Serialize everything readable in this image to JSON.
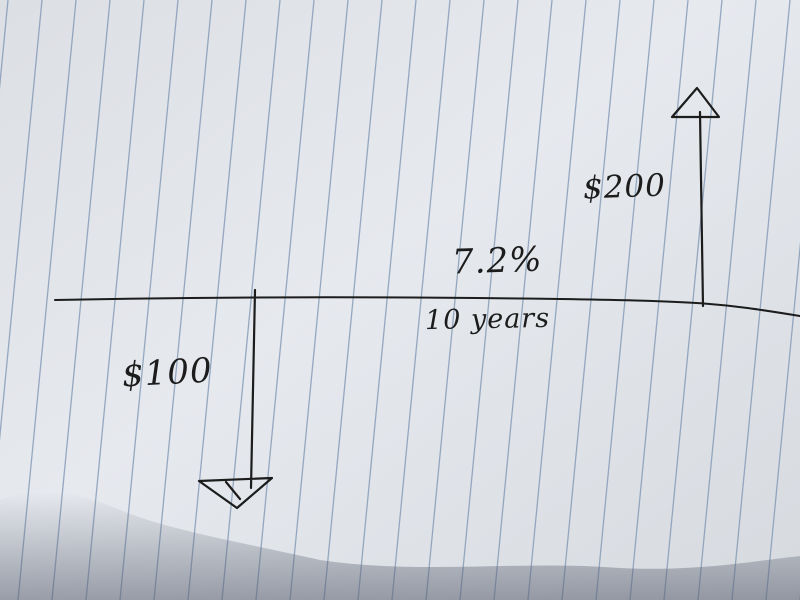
{
  "diagram": {
    "labels": {
      "rate": "7.2%",
      "period": "10 years",
      "outflow": "$100",
      "inflow": "$200"
    }
  },
  "colors": {
    "paper": "#e2e5ea",
    "rule_line": "#8097b4",
    "ink": "#1c1c1c"
  }
}
